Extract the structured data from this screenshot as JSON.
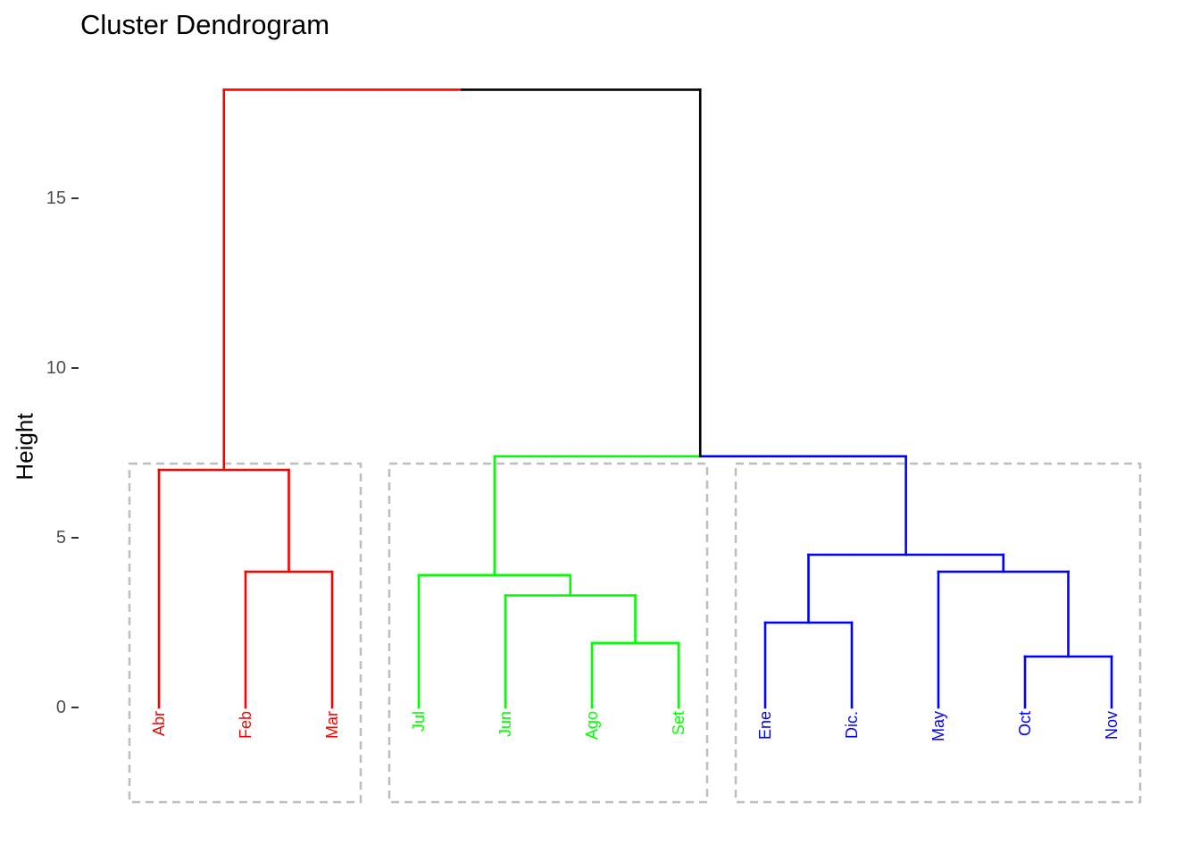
{
  "chart_data": {
    "type": "dendrogram",
    "title": "Cluster Dendrogram",
    "xlabel": "",
    "ylabel": "Height",
    "y_ticks": [
      0,
      5,
      10,
      15
    ],
    "ylim": [
      -2.8,
      18.2
    ],
    "grid": false,
    "leaf_order": [
      "Abr",
      "Feb",
      "Mar",
      "Jul",
      "Jun",
      "Ago",
      "Set",
      "Ene",
      "Dic.",
      "May",
      "Oct",
      "Nov"
    ],
    "merges": [
      {
        "id": "m1",
        "left": "Feb",
        "right": "Mar",
        "height": 4.0
      },
      {
        "id": "m2",
        "left": "Abr",
        "right": "m1",
        "height": 7.0
      },
      {
        "id": "m3",
        "left": "Ago",
        "right": "Set",
        "height": 1.9
      },
      {
        "id": "m4",
        "left": "Jun",
        "right": "m3",
        "height": 3.3
      },
      {
        "id": "m5",
        "left": "Jul",
        "right": "m4",
        "height": 3.9
      },
      {
        "id": "m6",
        "left": "Ene",
        "right": "Dic.",
        "height": 2.5
      },
      {
        "id": "m7",
        "left": "Oct",
        "right": "Nov",
        "height": 1.5
      },
      {
        "id": "m8",
        "left": "May",
        "right": "m7",
        "height": 4.0
      },
      {
        "id": "m9",
        "left": "m6",
        "right": "m8",
        "height": 4.5
      },
      {
        "id": "m10",
        "left": "m5",
        "right": "m9",
        "height": 7.4
      },
      {
        "id": "m11",
        "left": "m2",
        "right": "m10",
        "height": 18.2
      }
    ],
    "clusters": [
      {
        "color": "#FF0000",
        "members": [
          "Abr",
          "Feb",
          "Mar"
        ]
      },
      {
        "color": "#00FF00",
        "members": [
          "Jul",
          "Jun",
          "Ago",
          "Set"
        ]
      },
      {
        "color": "#0000FF",
        "members": [
          "Ene",
          "Dic.",
          "May",
          "Oct",
          "Nov"
        ]
      }
    ],
    "colors": {
      "root_left_branch": "#FF0000",
      "root_right_branch": "#000000",
      "cluster_box": "#BEBEBE",
      "tick_label": "#4D4D4D",
      "tick_mark": "#333333"
    },
    "cluster_boxes": true
  }
}
